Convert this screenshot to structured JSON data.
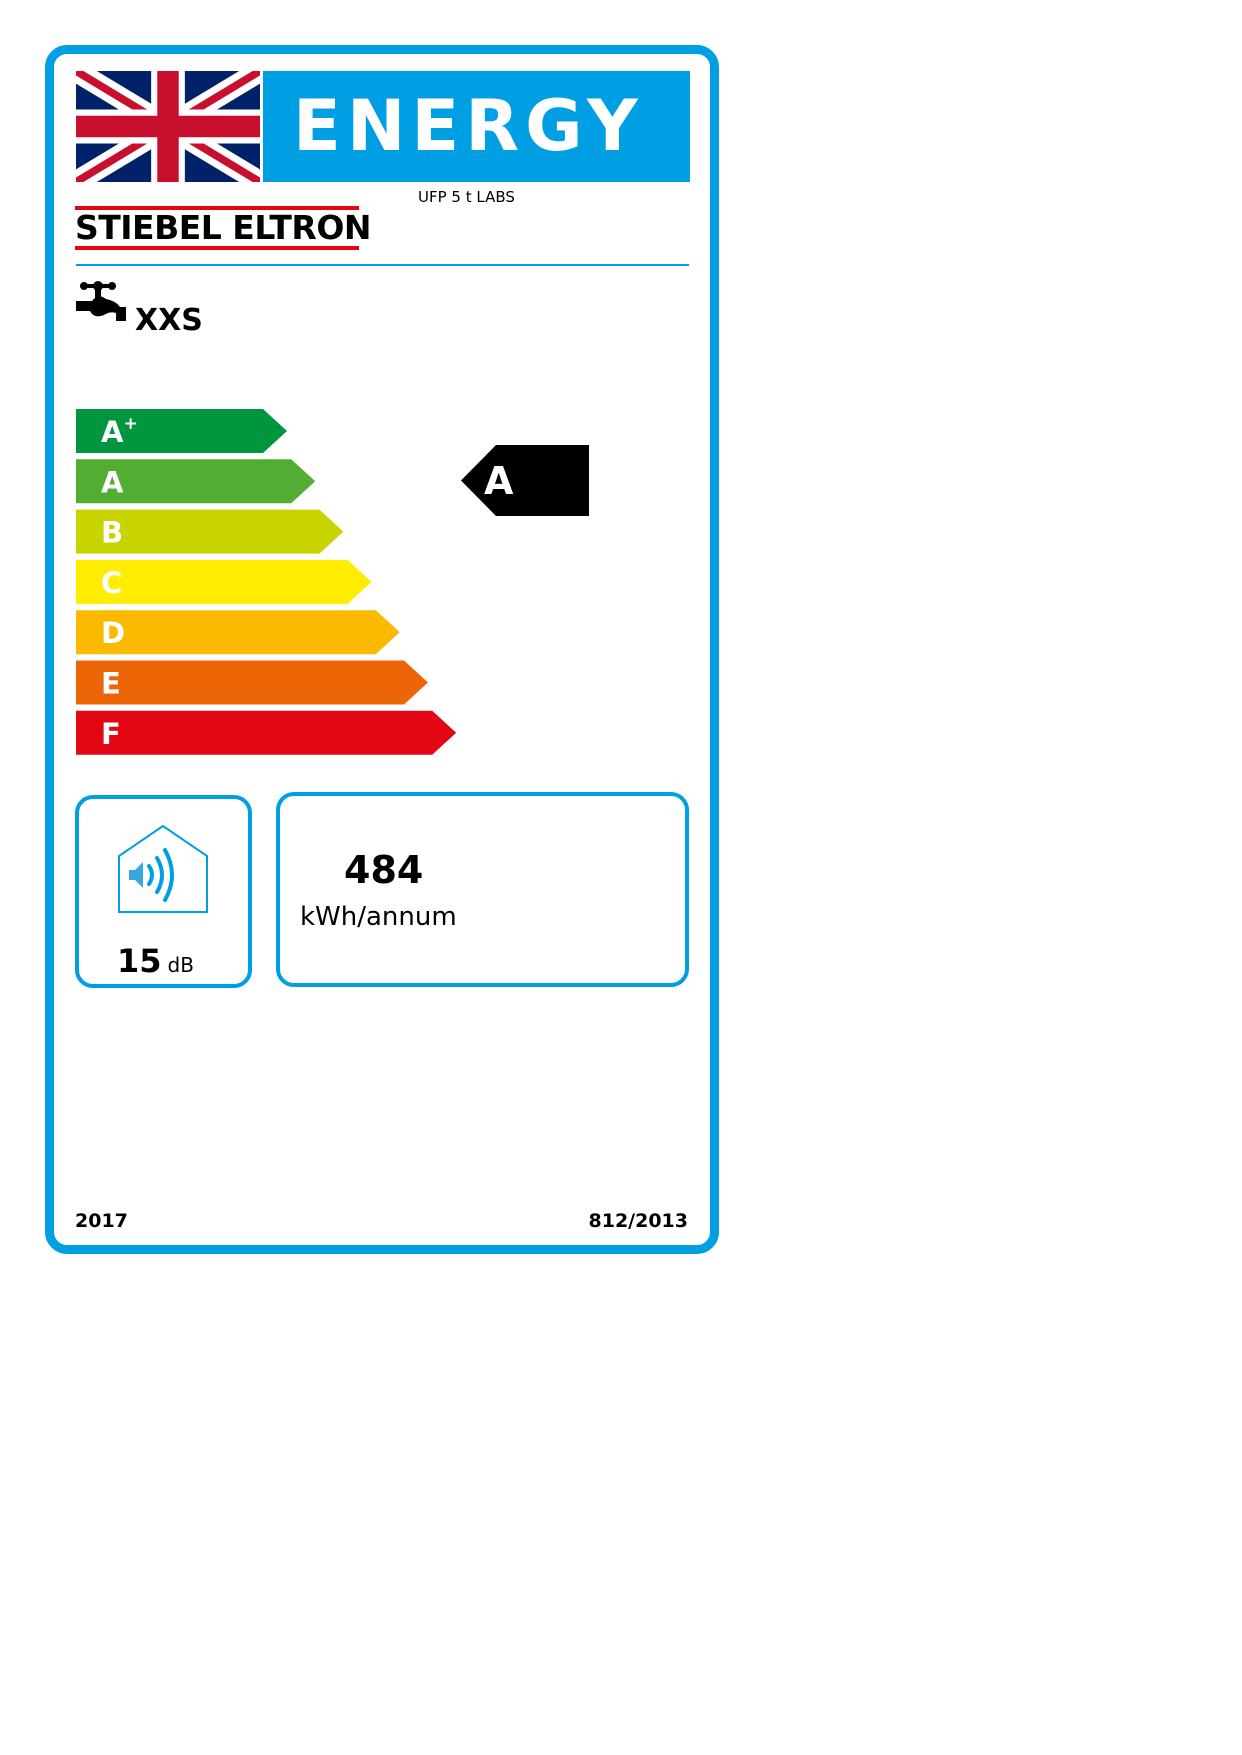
{
  "header": {
    "title": "ENERGY",
    "model": "UFP 5 t LABS",
    "brand": "STIEBEL ELTRON"
  },
  "load_profile": {
    "icon": "tap-icon",
    "value": "XXS"
  },
  "ratings": [
    {
      "label": "A",
      "sup": "+",
      "color": "#009640"
    },
    {
      "label": "A",
      "sup": "",
      "color": "#52ae32"
    },
    {
      "label": "B",
      "sup": "",
      "color": "#c8d400"
    },
    {
      "label": "C",
      "sup": "",
      "color": "#ffed00"
    },
    {
      "label": "D",
      "sup": "",
      "color": "#fbba00"
    },
    {
      "label": "E",
      "sup": "",
      "color": "#ec6608"
    },
    {
      "label": "F",
      "sup": "",
      "color": "#e30613"
    }
  ],
  "current_rating": {
    "label": "A",
    "index": 1
  },
  "noise": {
    "icon": "sound-house-icon",
    "value": "15",
    "unit": "dB"
  },
  "annual_energy": {
    "value": "484",
    "unit": "kWh/annum"
  },
  "footer": {
    "year": "2017",
    "regulation": "812/2013"
  },
  "colors": {
    "accent": "#009fe3"
  }
}
